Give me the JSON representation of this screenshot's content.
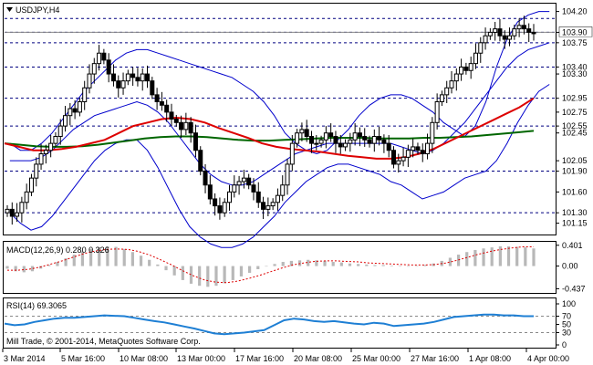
{
  "window": {
    "title": "USDJPY,H4",
    "copyright": "Mill Trade, © 2001-2014, MetaQuotes Software Corp."
  },
  "colors": {
    "candles": "#000000",
    "bollinger": "#0000cc",
    "ma_fast": "#dd0000",
    "ma_slow": "#006600",
    "level_line": "#000080",
    "macd_hist": "#b8b8b8",
    "macd_signal": "#dd0000",
    "rsi": "#1e7fd4"
  },
  "chart_data": [
    {
      "type": "candlestick",
      "symbol": "USDJPY",
      "timeframe": "H4",
      "ylim": [
        101.0,
        104.3
      ],
      "y_ticks": [
        104.2,
        103.9,
        103.75,
        103.4,
        103.3,
        102.95,
        102.75,
        102.55,
        102.45,
        102.05,
        101.9,
        101.6,
        101.3,
        101.15
      ],
      "levels": [
        104.1,
        103.9,
        103.75,
        103.4,
        102.95,
        102.55,
        101.9,
        101.3
      ],
      "highlight_levels": [
        104.1,
        103.9,
        103.75,
        103.4,
        102.95,
        102.55,
        101.9,
        101.3
      ],
      "x_labels": [
        "3 Mar 2014",
        "5 Mar 16:00",
        "10 Mar 08:00",
        "13 Mar 00:00",
        "17 Mar 16:00",
        "20 Mar 08:00",
        "25 Mar 00:00",
        "27 Mar 16:00",
        "1 Apr 08:00",
        "4 Apr 00:00"
      ],
      "close": [
        101.35,
        101.25,
        101.3,
        101.45,
        101.6,
        101.8,
        102.0,
        102.15,
        102.2,
        102.3,
        102.4,
        102.55,
        102.7,
        102.8,
        102.75,
        102.9,
        103.1,
        103.3,
        103.45,
        103.6,
        103.5,
        103.3,
        103.2,
        103.1,
        103.2,
        103.3,
        103.25,
        103.2,
        103.3,
        103.2,
        103.0,
        102.9,
        102.85,
        102.75,
        102.65,
        102.6,
        102.5,
        102.6,
        102.45,
        102.2,
        101.9,
        101.7,
        101.5,
        101.4,
        101.3,
        101.45,
        101.6,
        101.7,
        101.75,
        101.8,
        101.7,
        101.6,
        101.45,
        101.35,
        101.4,
        101.45,
        101.55,
        101.7,
        102.0,
        102.3,
        102.45,
        102.5,
        102.4,
        102.3,
        102.3,
        102.35,
        102.45,
        102.4,
        102.3,
        102.25,
        102.3,
        102.35,
        102.45,
        102.4,
        102.35,
        102.3,
        102.4,
        102.35,
        102.3,
        102.2,
        102.0,
        102.05,
        102.1,
        102.2,
        102.25,
        102.2,
        102.15,
        102.3,
        102.6,
        102.9,
        103.0,
        103.1,
        103.2,
        103.3,
        103.4,
        103.35,
        103.45,
        103.6,
        103.75,
        103.85,
        103.9,
        103.95,
        103.85,
        103.8,
        103.85,
        103.95,
        104.0,
        103.95,
        103.9,
        103.88
      ],
      "bollinger": {
        "upper": [
          102.3,
          102.2,
          102.2,
          102.3,
          102.45,
          102.65,
          102.85,
          103.05,
          103.2,
          103.35,
          103.5,
          103.6,
          103.65,
          103.65,
          103.6,
          103.55,
          103.5,
          103.45,
          103.4,
          103.35,
          103.3,
          103.25,
          103.15,
          103.05,
          102.9,
          102.7,
          102.45,
          102.3,
          102.2,
          102.15,
          102.2,
          102.35,
          102.5,
          102.7,
          102.85,
          102.95,
          103.0,
          103.0,
          102.95,
          102.85,
          102.75,
          102.6,
          102.5,
          102.4,
          102.55,
          102.9,
          103.4,
          103.8,
          104.05,
          104.15,
          104.2,
          104.2
        ],
        "middle": [
          102.05,
          102.05,
          102.05,
          102.1,
          102.2,
          102.35,
          102.5,
          102.6,
          102.7,
          102.75,
          102.8,
          102.85,
          102.9,
          102.85,
          102.75,
          102.6,
          102.4,
          102.2,
          102.0,
          101.85,
          101.75,
          101.7,
          101.7,
          101.75,
          101.85,
          101.95,
          102.05,
          102.15,
          102.2,
          102.25,
          102.3,
          102.3,
          102.3,
          102.3,
          102.3,
          102.3,
          102.3,
          102.25,
          102.2,
          102.15,
          102.2,
          102.3,
          102.45,
          102.6,
          102.8,
          103.0,
          103.2,
          103.4,
          103.55,
          103.65,
          103.7,
          103.75
        ],
        "lower": [
          101.3,
          101.15,
          101.05,
          101.1,
          101.25,
          101.45,
          101.65,
          101.85,
          102.05,
          102.2,
          102.3,
          102.35,
          102.35,
          102.2,
          101.95,
          101.65,
          101.35,
          101.1,
          100.95,
          100.85,
          100.8,
          100.8,
          100.85,
          100.95,
          101.1,
          101.25,
          101.45,
          101.6,
          101.75,
          101.85,
          101.95,
          102.0,
          102.0,
          101.95,
          101.9,
          101.85,
          101.75,
          101.7,
          101.6,
          101.5,
          101.55,
          101.6,
          101.7,
          101.8,
          101.85,
          101.9,
          102.05,
          102.3,
          102.6,
          102.85,
          103.05,
          103.15
        ]
      },
      "ma_fast": [
        102.3,
        102.25,
        102.2,
        102.2,
        102.22,
        102.25,
        102.3,
        102.35,
        102.45,
        102.55,
        102.6,
        102.65,
        102.67,
        102.65,
        102.6,
        102.52,
        102.45,
        102.38,
        102.3,
        102.25,
        102.22,
        102.2,
        102.18,
        102.15,
        102.12,
        102.1,
        102.08,
        102.08,
        102.1,
        102.15,
        102.22,
        102.32,
        102.42,
        102.52,
        102.62,
        102.72,
        102.82,
        102.95
      ],
      "ma_slow": [
        102.3,
        102.28,
        102.26,
        102.25,
        102.25,
        102.26,
        102.28,
        102.31,
        102.34,
        102.37,
        102.39,
        102.4,
        102.4,
        102.39,
        102.37,
        102.35,
        102.34,
        102.34,
        102.35,
        102.36,
        102.37,
        102.38,
        102.38,
        102.38,
        102.37,
        102.37,
        102.37,
        102.38,
        102.38,
        102.39,
        102.4,
        102.42,
        102.44,
        102.46,
        102.48
      ]
    },
    {
      "type": "histogram",
      "name": "MACD(12,26,9)",
      "values_text": "0.280 0.326",
      "ylim": [
        -0.5,
        0.45
      ],
      "y_ticks": [
        0.401,
        0.0,
        -0.437
      ],
      "histogram": [
        -0.05,
        -0.1,
        -0.12,
        -0.1,
        -0.05,
        0.02,
        0.08,
        0.15,
        0.22,
        0.28,
        0.33,
        0.36,
        0.38,
        0.37,
        0.33,
        0.27,
        0.2,
        0.12,
        0.03,
        -0.08,
        -0.18,
        -0.27,
        -0.34,
        -0.38,
        -0.4,
        -0.38,
        -0.33,
        -0.27,
        -0.2,
        -0.13,
        -0.06,
        0.0,
        0.04,
        0.08,
        0.1,
        0.11,
        0.12,
        0.11,
        0.1,
        0.08,
        0.07,
        0.05,
        0.04,
        0.03,
        0.02,
        0.02,
        0.01,
        0.0,
        -0.01,
        0.0,
        0.02,
        0.05,
        0.1,
        0.16,
        0.22,
        0.27,
        0.31,
        0.34,
        0.36,
        0.38,
        0.38,
        0.37,
        0.36,
        0.34
      ],
      "signal": [
        -0.08,
        -0.08,
        -0.06,
        -0.02,
        0.04,
        0.1,
        0.17,
        0.24,
        0.29,
        0.32,
        0.33,
        0.32,
        0.28,
        0.21,
        0.12,
        0.02,
        -0.09,
        -0.19,
        -0.27,
        -0.31,
        -0.32,
        -0.29,
        -0.24,
        -0.18,
        -0.11,
        -0.04,
        0.02,
        0.06,
        0.09,
        0.1,
        0.1,
        0.09,
        0.08,
        0.06,
        0.05,
        0.04,
        0.03,
        0.02,
        0.02,
        0.03,
        0.06,
        0.11,
        0.17,
        0.23,
        0.28,
        0.32,
        0.35,
        0.37,
        0.37
      ]
    },
    {
      "type": "line",
      "name": "RSI(14)",
      "value_text": "69.3065",
      "ylim": [
        0,
        100
      ],
      "y_ticks": [
        100,
        70,
        50,
        30,
        0
      ],
      "levels": [
        70,
        30
      ],
      "values": [
        52,
        48,
        50,
        56,
        60,
        64,
        66,
        66,
        68,
        70,
        72,
        71,
        70,
        66,
        62,
        58,
        55,
        50,
        45,
        40,
        34,
        28,
        26,
        28,
        30,
        33,
        36,
        48,
        60,
        64,
        62,
        58,
        56,
        58,
        55,
        52,
        50,
        54,
        52,
        46,
        48,
        50,
        52,
        56,
        62,
        68,
        70,
        72,
        74,
        74,
        72,
        72,
        70,
        70
      ]
    }
  ]
}
